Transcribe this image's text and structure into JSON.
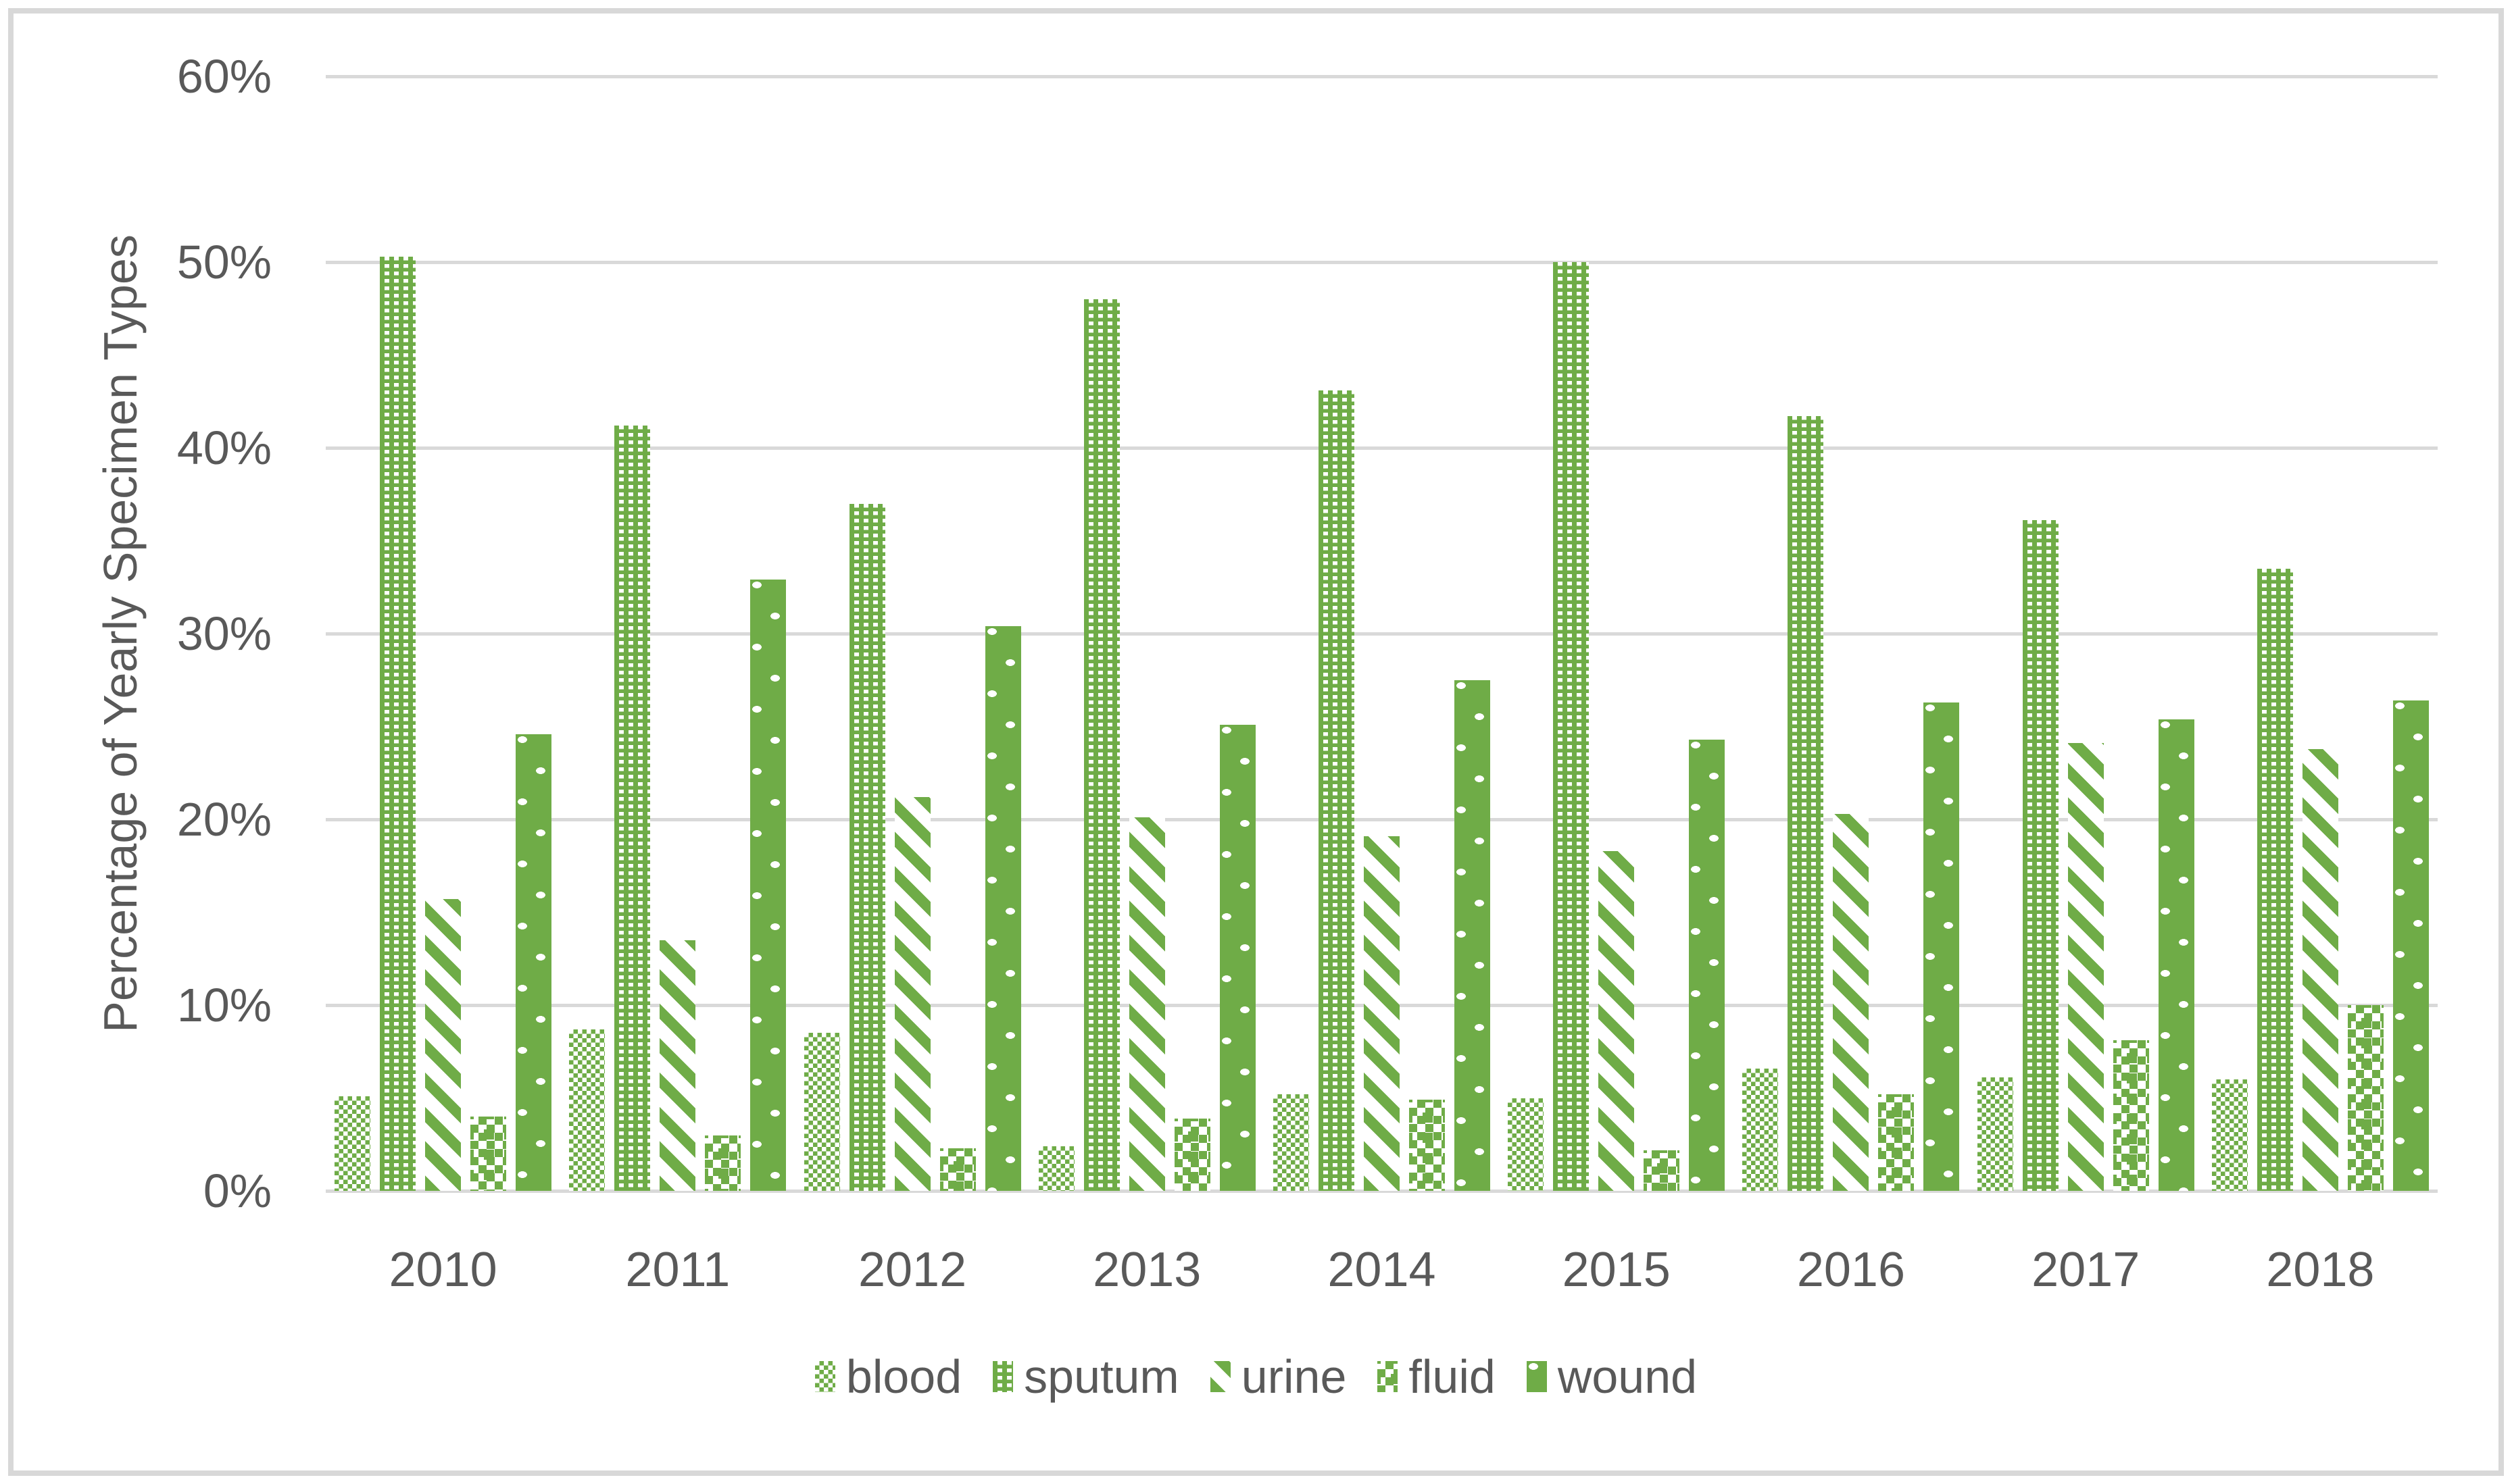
{
  "chart": {
    "y_axis_title": "Percentage of Yearly Specimen Types",
    "y_tick_labels": [
      "0%",
      "10%",
      "20%",
      "30%",
      "40%",
      "50%",
      "60%"
    ],
    "colors": {
      "accent_green": "#6FAC47",
      "text": "#595959",
      "gridline": "#D9D9D9",
      "frame_border": "#D8D8D8",
      "background": "#FFFFFF"
    }
  },
  "chart_data": {
    "type": "bar",
    "title": "",
    "xlabel": "",
    "ylabel": "Percentage of Yearly Specimen Types",
    "ylim": [
      0,
      60
    ],
    "y_tick_step": 10,
    "grid": true,
    "legend_position": "bottom",
    "categories": [
      "2010",
      "2011",
      "2012",
      "2013",
      "2014",
      "2015",
      "2016",
      "2017",
      "2018"
    ],
    "series": [
      {
        "name": "blood",
        "pattern": "checkerboard",
        "values": [
          5.1,
          8.7,
          8.5,
          2.4,
          5.2,
          5.0,
          6.6,
          6.1,
          6.0
        ]
      },
      {
        "name": "sputum",
        "pattern": "dash-grid",
        "values": [
          50.3,
          41.2,
          37.0,
          48.0,
          43.1,
          50.0,
          41.7,
          36.1,
          33.5
        ]
      },
      {
        "name": "urine",
        "pattern": "diagonal-stripes",
        "values": [
          15.7,
          13.5,
          21.2,
          20.1,
          19.1,
          18.3,
          20.3,
          24.1,
          23.8
        ]
      },
      {
        "name": "fluid",
        "pattern": "scattered-squares",
        "values": [
          4.0,
          3.0,
          2.3,
          3.9,
          4.9,
          2.2,
          5.2,
          8.1,
          10.0
        ]
      },
      {
        "name": "wound",
        "pattern": "solid-dotted",
        "values": [
          24.6,
          32.9,
          30.4,
          25.1,
          27.5,
          24.3,
          26.3,
          25.4,
          26.4
        ]
      }
    ]
  }
}
